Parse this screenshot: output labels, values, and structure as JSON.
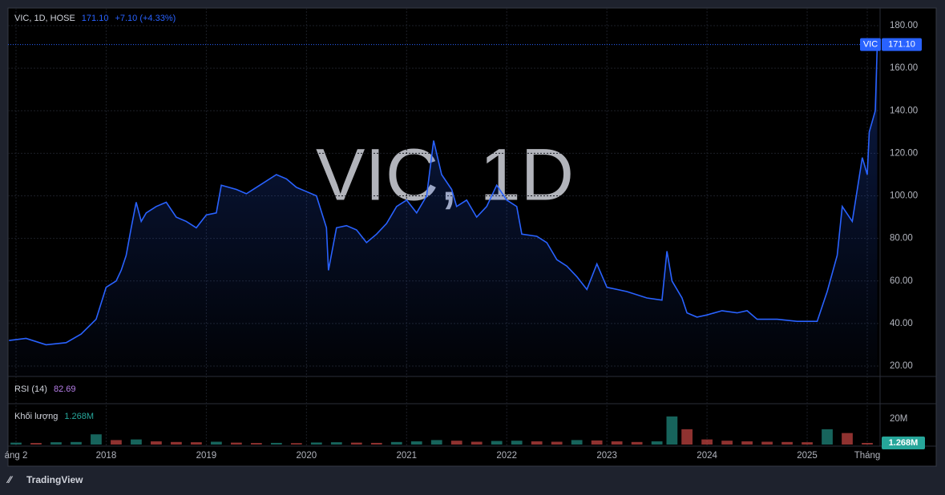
{
  "brand": "TradingView",
  "chart_data": [
    {
      "type": "line",
      "title": "VIC, 1D, HOSE",
      "watermark": "VIC, 1D",
      "last": {
        "value": 171.1,
        "label": "171.10"
      },
      "change_label": "+7.10 (+4.33%)",
      "x": [
        2017.03,
        2017.2,
        2017.4,
        2017.6,
        2017.75,
        2017.9,
        2018.0,
        2018.1,
        2018.15,
        2018.2,
        2018.25,
        2018.3,
        2018.35,
        2018.4,
        2018.5,
        2018.6,
        2018.7,
        2018.8,
        2018.9,
        2019.0,
        2019.1,
        2019.15,
        2019.3,
        2019.4,
        2019.5,
        2019.6,
        2019.7,
        2019.8,
        2019.9,
        2020.0,
        2020.1,
        2020.2,
        2020.22,
        2020.3,
        2020.4,
        2020.5,
        2020.6,
        2020.7,
        2020.8,
        2020.9,
        2021.0,
        2021.1,
        2021.2,
        2021.27,
        2021.35,
        2021.45,
        2021.5,
        2021.6,
        2021.7,
        2021.8,
        2021.9,
        2022.0,
        2022.1,
        2022.15,
        2022.3,
        2022.4,
        2022.5,
        2022.6,
        2022.7,
        2022.8,
        2022.9,
        2023.0,
        2023.2,
        2023.4,
        2023.55,
        2023.6,
        2023.65,
        2023.75,
        2023.8,
        2023.9,
        2024.0,
        2024.15,
        2024.3,
        2024.4,
        2024.5,
        2024.7,
        2024.9,
        2025.1,
        2025.2,
        2025.3,
        2025.35,
        2025.45,
        2025.55,
        2025.6,
        2025.62,
        2025.68,
        2025.7
      ],
      "series": [
        {
          "name": "VIC",
          "color": "#2962ff",
          "values": [
            32,
            33,
            30,
            31,
            35,
            42,
            57,
            60,
            65,
            72,
            85,
            97,
            88,
            92,
            95,
            97,
            90,
            88,
            85,
            91,
            92,
            105,
            103,
            101,
            104,
            107,
            110,
            108,
            104,
            102,
            100,
            85,
            65,
            85,
            86,
            84,
            78,
            82,
            87,
            95,
            98,
            92,
            100,
            126,
            110,
            103,
            95,
            98,
            90,
            95,
            105,
            98,
            95,
            82,
            81,
            78,
            70,
            67,
            62,
            56,
            68,
            57,
            55,
            52,
            51,
            74,
            60,
            52,
            45,
            43,
            44,
            46,
            45,
            46,
            42,
            42,
            41,
            41,
            55,
            72,
            95,
            88,
            118,
            110,
            130,
            140,
            171.1
          ]
        }
      ],
      "xlim": [
        2017.02,
        2025.72
      ],
      "xticks": [
        {
          "value": 2017.1,
          "label": "áng 2"
        },
        2018,
        2019,
        2020,
        2021,
        2022,
        2023,
        2024,
        2025,
        {
          "value": 2025.6,
          "label": "Tháng"
        }
      ],
      "ylim": [
        15.1,
        188.3
      ],
      "yticks": [
        {
          "value": 20,
          "label": "20.00"
        },
        {
          "value": 40,
          "label": "40.00"
        },
        {
          "value": 60,
          "label": "60.00"
        },
        {
          "value": 80,
          "label": "80.00"
        },
        {
          "value": 100,
          "label": "100.00"
        },
        {
          "value": 120,
          "label": "120.00"
        },
        {
          "value": 140,
          "label": "140.00"
        },
        {
          "value": 160,
          "label": "160.00"
        },
        {
          "value": 180,
          "label": "180.00"
        }
      ],
      "grid": true
    },
    {
      "type": "indicator",
      "title": "RSI (14)",
      "value": 82.69,
      "color": "#b67ee8"
    },
    {
      "type": "bar",
      "title": "Khối lượng",
      "color": "#26a69a",
      "down_color": "#ef5350",
      "x": [
        2017.1,
        2017.3,
        2017.5,
        2017.7,
        2017.9,
        2018.1,
        2018.3,
        2018.5,
        2018.7,
        2018.9,
        2019.1,
        2019.3,
        2019.5,
        2019.7,
        2019.9,
        2020.1,
        2020.3,
        2020.5,
        2020.7,
        2020.9,
        2021.1,
        2021.3,
        2021.5,
        2021.7,
        2021.9,
        2022.1,
        2022.3,
        2022.5,
        2022.7,
        2022.9,
        2023.1,
        2023.3,
        2023.5,
        2023.65,
        2023.8,
        2024.0,
        2024.2,
        2024.4,
        2024.6,
        2024.8,
        2025.0,
        2025.2,
        2025.4,
        2025.6
      ],
      "values": [
        1500000,
        1200000,
        1800000,
        2000000,
        8000000,
        3500000,
        4000000,
        2500000,
        2000000,
        1800000,
        2200000,
        1500000,
        1200000,
        1300000,
        1100000,
        1600000,
        1800000,
        1500000,
        1300000,
        2000000,
        2500000,
        3500000,
        3000000,
        2200000,
        2800000,
        3000000,
        2500000,
        2200000,
        3500000,
        3200000,
        2500000,
        2000000,
        2500000,
        22000000,
        12000000,
        4000000,
        3000000,
        2500000,
        2200000,
        2000000,
        1800000,
        12000000,
        9000000,
        1268000
      ],
      "value_labels": [
        null,
        null,
        null,
        null,
        null,
        null,
        null,
        null,
        null,
        null,
        null,
        null,
        null,
        null,
        null,
        null,
        null,
        null,
        null,
        null,
        null,
        null,
        null,
        null,
        null,
        null,
        null,
        null,
        null,
        null,
        null,
        null,
        null,
        null,
        null,
        null,
        null,
        null,
        null,
        null,
        null,
        null,
        null,
        "1.268M"
      ],
      "ylim": [
        0,
        32000000
      ],
      "yticks": [
        {
          "value": 20000000,
          "label": "20M"
        }
      ]
    }
  ]
}
